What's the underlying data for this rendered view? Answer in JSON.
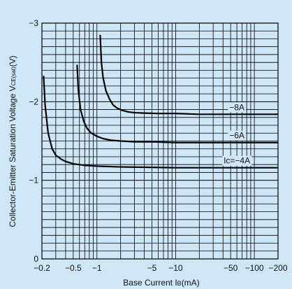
{
  "chart_data": {
    "type": "line",
    "title": "",
    "xlabel": "Base Current I",
    "xlabel_sub": "B",
    "xlabel_tail": "(mA)",
    "ylabel": "Collector-Emitter Saturation Voltage V",
    "ylabel_sub": "CE(sat)",
    "ylabel_tail": "(V)",
    "x_scale": "log",
    "x_direction": "negative",
    "xlim": [
      -0.2,
      -200
    ],
    "ylim": [
      0,
      -3
    ],
    "grid": true,
    "x_ticks": [
      {
        "value": -0.2,
        "label": "−0.2"
      },
      {
        "value": -0.5,
        "label": "−0.5"
      },
      {
        "value": -1,
        "label": "−1"
      },
      {
        "value": -5,
        "label": "−5"
      },
      {
        "value": -10,
        "label": "−10"
      },
      {
        "value": -50,
        "label": "−50"
      },
      {
        "value": -100,
        "label": "−100"
      },
      {
        "value": -200,
        "label": "−200"
      }
    ],
    "y_ticks": [
      {
        "value": 0,
        "label": "0"
      },
      {
        "value": -1,
        "label": "−1"
      },
      {
        "value": -2,
        "label": "−2"
      },
      {
        "value": -3,
        "label": "−3"
      }
    ],
    "series": [
      {
        "name": "Ic=−4A",
        "label_at_x": -60,
        "x": [
          -0.21,
          -0.22,
          -0.24,
          -0.27,
          -0.3,
          -0.35,
          -0.4,
          -0.5,
          -0.7,
          -1,
          -2,
          -5,
          -10,
          -20,
          -50,
          -100,
          -200
        ],
        "y": [
          -2.33,
          -1.95,
          -1.6,
          -1.4,
          -1.32,
          -1.27,
          -1.24,
          -1.21,
          -1.19,
          -1.18,
          -1.17,
          -1.165,
          -1.16,
          -1.16,
          -1.16,
          -1.16,
          -1.16
        ]
      },
      {
        "name": "−6A",
        "label_at_x": -60,
        "x": [
          -0.56,
          -0.58,
          -0.62,
          -0.68,
          -0.75,
          -0.85,
          -1,
          -1.2,
          -1.5,
          -2,
          -3,
          -5,
          -10,
          -20,
          -50,
          -100,
          -200
        ],
        "y": [
          -2.47,
          -2.15,
          -1.9,
          -1.75,
          -1.66,
          -1.6,
          -1.56,
          -1.53,
          -1.51,
          -1.5,
          -1.49,
          -1.49,
          -1.48,
          -1.48,
          -1.48,
          -1.48,
          -1.48
        ]
      },
      {
        "name": "−8A",
        "label_at_x": -60,
        "x": [
          -1.1,
          -1.14,
          -1.2,
          -1.3,
          -1.45,
          -1.6,
          -1.8,
          -2.1,
          -2.5,
          -3,
          -4,
          -6,
          -10,
          -20,
          -50,
          -100,
          -200
        ],
        "y": [
          -2.85,
          -2.5,
          -2.3,
          -2.14,
          -2.03,
          -1.96,
          -1.92,
          -1.89,
          -1.87,
          -1.86,
          -1.855,
          -1.85,
          -1.85,
          -1.84,
          -1.84,
          -1.84,
          -1.84
        ]
      }
    ]
  }
}
